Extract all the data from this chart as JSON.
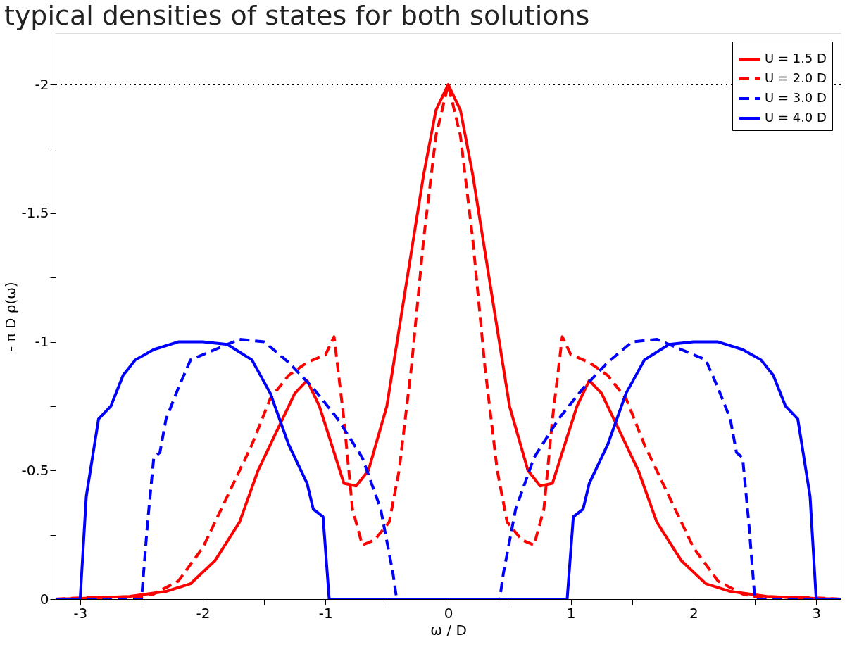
{
  "chart_data": {
    "type": "line",
    "title": "typical densities of states for both solutions",
    "xlabel": "ω / D",
    "ylabel": "- π D ρ(ω)",
    "xlim": [
      -3.2,
      3.2
    ],
    "ylim": [
      0,
      -2.2
    ],
    "xticks": [
      -3,
      {
        "value": -2.5,
        "label": null
      },
      -2,
      {
        "value": -1.5,
        "label": null
      },
      -1,
      {
        "value": -0.5,
        "label": null
      },
      0,
      {
        "value": 0.5,
        "label": null
      },
      1,
      {
        "value": 1.5,
        "label": null
      },
      2,
      {
        "value": 2.5,
        "label": null
      },
      3
    ],
    "yticks": [
      0,
      {
        "value": -0.25,
        "label": null
      },
      -0.5,
      {
        "value": -0.75,
        "label": null
      },
      -1,
      {
        "value": -1.25,
        "label": null
      },
      -1.5,
      {
        "value": -1.75,
        "label": null
      },
      -2
    ],
    "grid": false,
    "legend": "top right",
    "ref_lines": [
      {
        "axis": "y",
        "value": -2,
        "color": "#000000",
        "line_style": "dotted"
      }
    ],
    "series": [
      {
        "name": "U = 1.5 D",
        "color": "#ff0000",
        "line_style": "solid",
        "x": [
          -3.2,
          -3.0,
          -2.6,
          -2.3,
          -2.1,
          -1.9,
          -1.7,
          -1.55,
          -1.4,
          -1.25,
          -1.15,
          -1.05,
          -0.95,
          -0.85,
          -0.75,
          -0.65,
          -0.5,
          -0.4,
          -0.3,
          -0.2,
          -0.1,
          0,
          0.1,
          0.2,
          0.3,
          0.4,
          0.5,
          0.65,
          0.75,
          0.85,
          0.95,
          1.05,
          1.15,
          1.25,
          1.4,
          1.55,
          1.7,
          1.9,
          2.1,
          2.3,
          2.6,
          3.0,
          3.2
        ],
        "values": [
          0,
          -0.003,
          -0.01,
          -0.03,
          -0.06,
          -0.15,
          -0.3,
          -0.5,
          -0.65,
          -0.8,
          -0.85,
          -0.75,
          -0.6,
          -0.45,
          -0.44,
          -0.5,
          -0.75,
          -1.05,
          -1.35,
          -1.65,
          -1.9,
          -2.0,
          -1.9,
          -1.65,
          -1.35,
          -1.05,
          -0.75,
          -0.5,
          -0.44,
          -0.45,
          -0.6,
          -0.75,
          -0.85,
          -0.8,
          -0.65,
          -0.5,
          -0.3,
          -0.15,
          -0.06,
          -0.03,
          -0.01,
          -0.003,
          0
        ]
      },
      {
        "name": "U = 2.0 D",
        "color": "#ff0000",
        "line_style": "dashed",
        "x": [
          -3.2,
          -3.0,
          -2.5,
          -2.4,
          -2.2,
          -2.0,
          -1.8,
          -1.6,
          -1.45,
          -1.3,
          -1.15,
          -1.0,
          -0.93,
          -0.85,
          -0.78,
          -0.7,
          -0.6,
          -0.48,
          -0.4,
          -0.3,
          -0.2,
          -0.1,
          0,
          0.1,
          0.2,
          0.3,
          0.4,
          0.48,
          0.6,
          0.7,
          0.78,
          0.85,
          0.93,
          1.0,
          1.15,
          1.3,
          1.45,
          1.6,
          1.8,
          2.0,
          2.2,
          2.4,
          2.5,
          3.0,
          3.2
        ],
        "values": [
          0,
          -0.005,
          -0.01,
          -0.02,
          -0.07,
          -0.2,
          -0.4,
          -0.6,
          -0.78,
          -0.87,
          -0.92,
          -0.95,
          -1.02,
          -0.7,
          -0.35,
          -0.21,
          -0.23,
          -0.3,
          -0.5,
          -0.9,
          -1.4,
          -1.8,
          -2.0,
          -1.8,
          -1.4,
          -0.9,
          -0.5,
          -0.3,
          -0.23,
          -0.21,
          -0.35,
          -0.7,
          -1.02,
          -0.95,
          -0.92,
          -0.87,
          -0.78,
          -0.6,
          -0.4,
          -0.2,
          -0.07,
          -0.02,
          -0.01,
          -0.005,
          0
        ]
      },
      {
        "name": "U = 3.0 D",
        "color": "#0000ff",
        "line_style": "dashed",
        "x": [
          -3.2,
          -2.5,
          -2.45,
          -2.4,
          -2.35,
          -2.3,
          -2.2,
          -2.1,
          -1.9,
          -1.7,
          -1.5,
          -1.3,
          -1.1,
          -0.9,
          -0.7,
          -0.55,
          -0.45,
          -0.42,
          0.42,
          0.45,
          0.55,
          0.7,
          0.9,
          1.1,
          1.3,
          1.5,
          1.7,
          1.9,
          2.1,
          2.2,
          2.3,
          2.35,
          2.4,
          2.45,
          2.5,
          3.2
        ],
        "values": [
          0,
          0,
          -0.3,
          -0.55,
          -0.57,
          -0.7,
          -0.82,
          -0.93,
          -0.97,
          -1.01,
          -1.0,
          -0.92,
          -0.82,
          -0.7,
          -0.55,
          -0.35,
          -0.1,
          0,
          0,
          -0.1,
          -0.35,
          -0.55,
          -0.7,
          -0.82,
          -0.92,
          -1.0,
          -1.01,
          -0.97,
          -0.93,
          -0.82,
          -0.7,
          -0.57,
          -0.55,
          -0.3,
          0,
          0
        ]
      },
      {
        "name": "U = 4.0 D",
        "color": "#0000ff",
        "line_style": "solid",
        "x": [
          -3.2,
          -3.0,
          -2.95,
          -2.9,
          -2.85,
          -2.75,
          -2.65,
          -2.55,
          -2.4,
          -2.2,
          -2.0,
          -1.8,
          -1.6,
          -1.45,
          -1.3,
          -1.15,
          -1.1,
          -1.02,
          -0.97,
          0.97,
          1.02,
          1.1,
          1.15,
          1.3,
          1.45,
          1.6,
          1.8,
          2.0,
          2.2,
          2.4,
          2.55,
          2.65,
          2.75,
          2.85,
          2.9,
          2.95,
          3.0,
          3.2
        ],
        "values": [
          0,
          0,
          -0.4,
          -0.55,
          -0.7,
          -0.75,
          -0.87,
          -0.93,
          -0.97,
          -1.0,
          -1.0,
          -0.99,
          -0.93,
          -0.8,
          -0.6,
          -0.45,
          -0.35,
          -0.32,
          0,
          0,
          -0.32,
          -0.35,
          -0.45,
          -0.6,
          -0.8,
          -0.93,
          -0.99,
          -1.0,
          -1.0,
          -0.97,
          -0.93,
          -0.87,
          -0.75,
          -0.7,
          -0.55,
          -0.4,
          0,
          0
        ]
      }
    ]
  }
}
